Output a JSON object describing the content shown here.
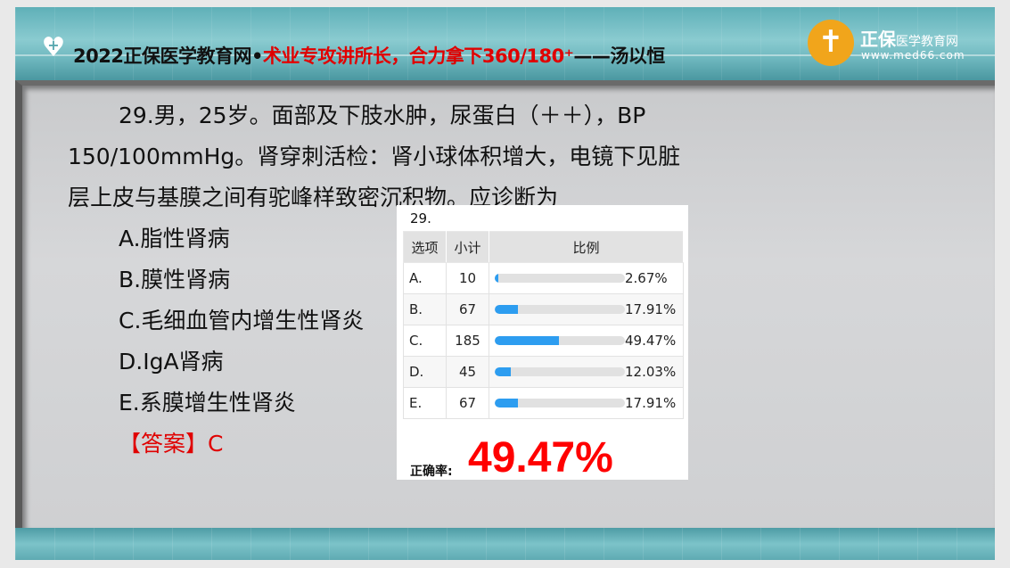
{
  "header": {
    "title_prefix": "2022正保医学教育网•",
    "title_red": "术业专攻讲所长，合力拿下360/180⁺",
    "title_suffix": "——汤以恒",
    "brand": "正保",
    "brand_small": "医学教育网",
    "url": "www.med66.com",
    "logo_glyph": "✝"
  },
  "question": {
    "line1": "29.男，25岁。面部及下肢水肿，尿蛋白（＋＋），BP",
    "line2": "150/100mmHg。肾穿刺活检：肾小球体积增大，电镜下见脏",
    "line3": "层上皮与基膜之间有驼峰样致密沉积物。应诊断为",
    "options": [
      "A.脂性肾病",
      "B.膜性肾病",
      "C.毛细血管内增生性肾炎",
      "D.IgA肾病",
      "E.系膜增生性肾炎"
    ],
    "answer": "【答案】C"
  },
  "stats": {
    "number": "29.",
    "headers": [
      "选项",
      "小计",
      "比例"
    ],
    "rows": [
      {
        "option": "A.",
        "count": "10",
        "percent": "2.67%",
        "value": 2.67
      },
      {
        "option": "B.",
        "count": "67",
        "percent": "17.91%",
        "value": 17.91
      },
      {
        "option": "C.",
        "count": "185",
        "percent": "49.47%",
        "value": 49.47
      },
      {
        "option": "D.",
        "count": "45",
        "percent": "12.03%",
        "value": 12.03
      },
      {
        "option": "E.",
        "count": "67",
        "percent": "17.91%",
        "value": 17.91
      }
    ],
    "accuracy_label": "正确率:",
    "accuracy_value": "49.47%",
    "bar_color": "#2d9df0"
  }
}
